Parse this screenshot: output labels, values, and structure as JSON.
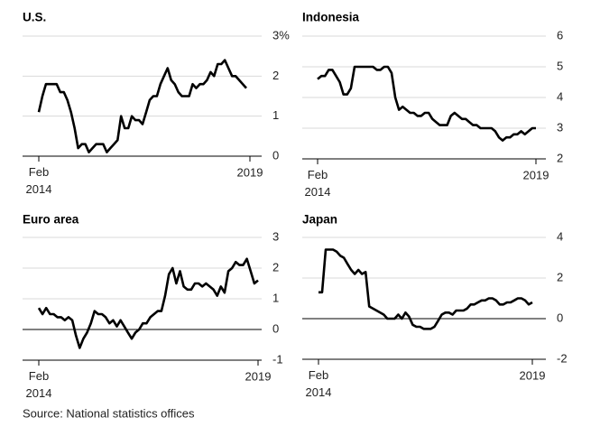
{
  "chart_data": [
    {
      "type": "line",
      "title": "U.S.",
      "categories": [
        "Feb 2014",
        null,
        null,
        null,
        null,
        null,
        null,
        null,
        null,
        null,
        null,
        null,
        null,
        null,
        null,
        null,
        null,
        null,
        null,
        null,
        null,
        null,
        null,
        null,
        null,
        null,
        null,
        null,
        null,
        null,
        null,
        null,
        null,
        null,
        null,
        null,
        null,
        null,
        null,
        null,
        null,
        null,
        null,
        null,
        null,
        null,
        null,
        null,
        null,
        null,
        null,
        null,
        null,
        null,
        null,
        null,
        null,
        null,
        null,
        "2019"
      ],
      "series": [
        {
          "color": "#000000",
          "values": [
            1.1,
            1.5,
            1.8,
            1.8,
            1.8,
            1.8,
            1.6,
            1.6,
            1.4,
            1.1,
            0.7,
            0.2,
            0.3,
            0.3,
            0.1,
            0.2,
            0.3,
            0.3,
            0.3,
            0.1,
            0.2,
            0.3,
            0.4,
            1.0,
            0.7,
            0.7,
            1.0,
            0.9,
            0.9,
            0.8,
            1.1,
            1.4,
            1.5,
            1.5,
            1.8,
            2.0,
            2.2,
            1.9,
            1.8,
            1.6,
            1.5,
            1.5,
            1.5,
            1.8,
            1.7,
            1.8,
            1.8,
            1.9,
            2.1,
            2.0,
            2.3,
            2.3,
            2.4,
            2.2,
            2.0,
            2.0,
            1.9,
            1.8,
            1.7,
            null
          ]
        }
      ],
      "ylim": [
        0,
        3
      ],
      "yticks": [
        0,
        1,
        2,
        {
          "value": 3,
          "label": "3%"
        }
      ],
      "grid": true
    },
    {
      "type": "line",
      "title": "Indonesia",
      "categories": [
        "Feb 2014",
        null,
        null,
        null,
        null,
        null,
        null,
        null,
        null,
        null,
        null,
        null,
        null,
        null,
        null,
        null,
        null,
        null,
        null,
        null,
        null,
        null,
        null,
        null,
        null,
        null,
        null,
        null,
        null,
        null,
        null,
        null,
        null,
        null,
        null,
        null,
        null,
        null,
        null,
        null,
        null,
        null,
        null,
        null,
        null,
        null,
        null,
        null,
        null,
        null,
        null,
        null,
        null,
        null,
        null,
        null,
        null,
        null,
        null,
        "2019"
      ],
      "series": [
        {
          "color": "#000000",
          "values": [
            4.6,
            4.7,
            4.7,
            4.9,
            4.9,
            4.7,
            4.5,
            4.1,
            4.1,
            4.3,
            5.0,
            5.0,
            5.0,
            5.0,
            5.0,
            5.0,
            4.9,
            4.9,
            5.0,
            5.0,
            4.8,
            4.0,
            3.6,
            3.7,
            3.6,
            3.5,
            3.5,
            3.4,
            3.4,
            3.5,
            3.5,
            3.3,
            3.2,
            3.1,
            3.1,
            3.1,
            3.4,
            3.5,
            3.4,
            3.3,
            3.3,
            3.2,
            3.1,
            3.1,
            3.0,
            3.0,
            3.0,
            3.0,
            2.9,
            2.7,
            2.6,
            2.7,
            2.7,
            2.8,
            2.8,
            2.9,
            2.8,
            2.9,
            3.0,
            3.0
          ]
        }
      ],
      "ylim": [
        2,
        6
      ],
      "yticks": [
        2,
        3,
        4,
        5,
        6
      ],
      "grid": true
    },
    {
      "type": "line",
      "title": "Euro area",
      "categories": [
        "Feb 2014",
        null,
        null,
        null,
        null,
        null,
        null,
        null,
        null,
        null,
        null,
        null,
        null,
        null,
        null,
        null,
        null,
        null,
        null,
        null,
        null,
        null,
        null,
        null,
        null,
        null,
        null,
        null,
        null,
        null,
        null,
        null,
        null,
        null,
        null,
        null,
        null,
        null,
        null,
        null,
        null,
        null,
        null,
        null,
        null,
        null,
        null,
        null,
        null,
        null,
        null,
        null,
        null,
        null,
        null,
        null,
        null,
        null,
        null,
        "2019"
      ],
      "series": [
        {
          "color": "#000000",
          "values": [
            0.7,
            0.5,
            0.7,
            0.5,
            0.5,
            0.4,
            0.4,
            0.3,
            0.4,
            0.3,
            -0.2,
            -0.6,
            -0.3,
            -0.1,
            0.2,
            0.6,
            0.5,
            0.5,
            0.4,
            0.2,
            0.3,
            0.1,
            0.3,
            0.1,
            -0.1,
            -0.3,
            -0.1,
            0.0,
            0.2,
            0.2,
            0.4,
            0.5,
            0.6,
            0.6,
            1.1,
            1.8,
            2.0,
            1.5,
            1.9,
            1.4,
            1.3,
            1.3,
            1.5,
            1.5,
            1.4,
            1.5,
            1.4,
            1.3,
            1.1,
            1.4,
            1.2,
            1.9,
            2.0,
            2.2,
            2.1,
            2.1,
            2.3,
            1.9,
            1.5,
            1.6
          ]
        }
      ],
      "ylim": [
        -1,
        3
      ],
      "yticks": [
        -1,
        0,
        1,
        2,
        3
      ],
      "grid": true
    },
    {
      "type": "line",
      "title": "Japan",
      "categories": [
        "Feb 2014",
        null,
        null,
        null,
        null,
        null,
        null,
        null,
        null,
        null,
        null,
        null,
        null,
        null,
        null,
        null,
        null,
        null,
        null,
        null,
        null,
        null,
        null,
        null,
        null,
        null,
        null,
        null,
        null,
        null,
        null,
        null,
        null,
        null,
        null,
        null,
        null,
        null,
        null,
        null,
        null,
        null,
        null,
        null,
        null,
        null,
        null,
        null,
        null,
        null,
        null,
        null,
        null,
        null,
        null,
        null,
        null,
        null,
        null,
        "2019"
      ],
      "series": [
        {
          "color": "#000000",
          "values": [
            1.3,
            1.3,
            3.4,
            3.4,
            3.4,
            3.3,
            3.1,
            3.0,
            2.7,
            2.4,
            2.2,
            2.4,
            2.2,
            2.3,
            0.6,
            0.5,
            0.4,
            0.3,
            0.2,
            0.0,
            0.0,
            0.0,
            0.2,
            0.0,
            0.3,
            0.1,
            -0.3,
            -0.4,
            -0.4,
            -0.5,
            -0.5,
            -0.5,
            -0.4,
            -0.1,
            0.2,
            0.3,
            0.3,
            0.2,
            0.4,
            0.4,
            0.4,
            0.5,
            0.7,
            0.7,
            0.8,
            0.9,
            0.9,
            1.0,
            1.0,
            0.9,
            0.7,
            0.7,
            0.8,
            0.8,
            0.9,
            1.0,
            1.0,
            0.9,
            0.7,
            0.8
          ]
        }
      ],
      "ylim": [
        -2,
        4
      ],
      "yticks": [
        -2,
        0,
        2,
        4
      ],
      "grid": true
    }
  ],
  "source": "Source: National statistics offices"
}
